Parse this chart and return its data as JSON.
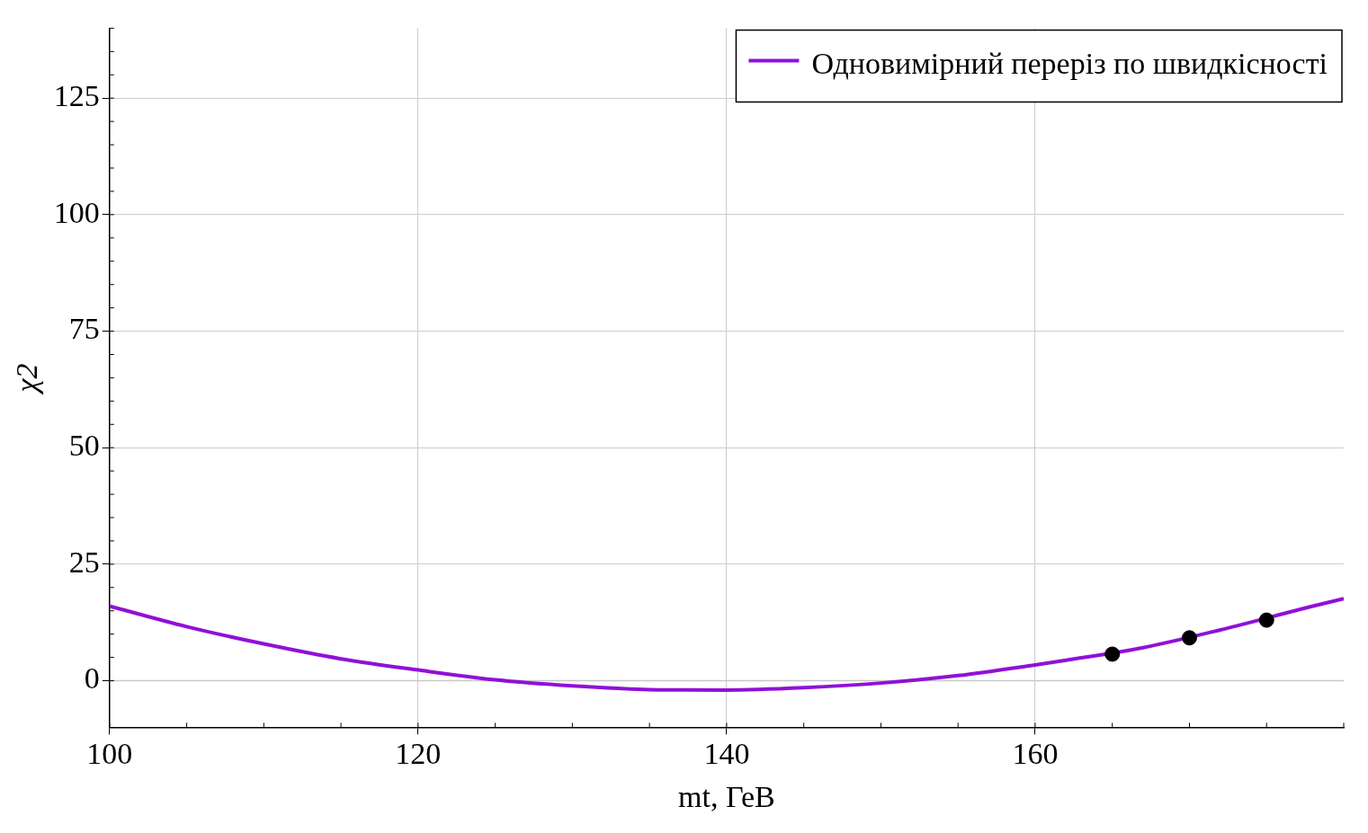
{
  "chart_data": {
    "type": "line",
    "xlabel": "mt, ГеВ",
    "ylabel": "χ2",
    "xlim": [
      100,
      180
    ],
    "xticks": [
      100,
      120,
      140,
      160
    ],
    "ylim": [
      -10,
      140
    ],
    "yticks": [
      0,
      25,
      50,
      75,
      100,
      125
    ],
    "grid": true,
    "legend": "top right",
    "marker": "none",
    "line_style": "solid",
    "ref_lines": [
      {
        "axis": "y",
        "value": 0,
        "color": "#c8c8c8"
      }
    ],
    "series": [
      {
        "name": "Одновимірний переріз по швидкісності",
        "color": "#9010d8",
        "x": [
          100,
          105,
          110,
          115,
          120,
          125,
          130,
          135,
          140,
          145,
          150,
          155,
          160,
          162,
          167,
          172,
          178,
          180
        ],
        "values": [
          16.0,
          11.6,
          7.9,
          4.7,
          2.3,
          0.2,
          -1.1,
          -1.9,
          -2.0,
          -1.5,
          -0.5,
          1.1,
          3.4,
          4.4,
          7.1,
          10.9,
          16.0,
          17.6
        ]
      },
      {
        "type": "scatter",
        "marker": "circle",
        "color": "#000000",
        "x": [
          165,
          170,
          175
        ],
        "values": [
          5.7,
          9.2,
          13.0
        ]
      }
    ]
  }
}
